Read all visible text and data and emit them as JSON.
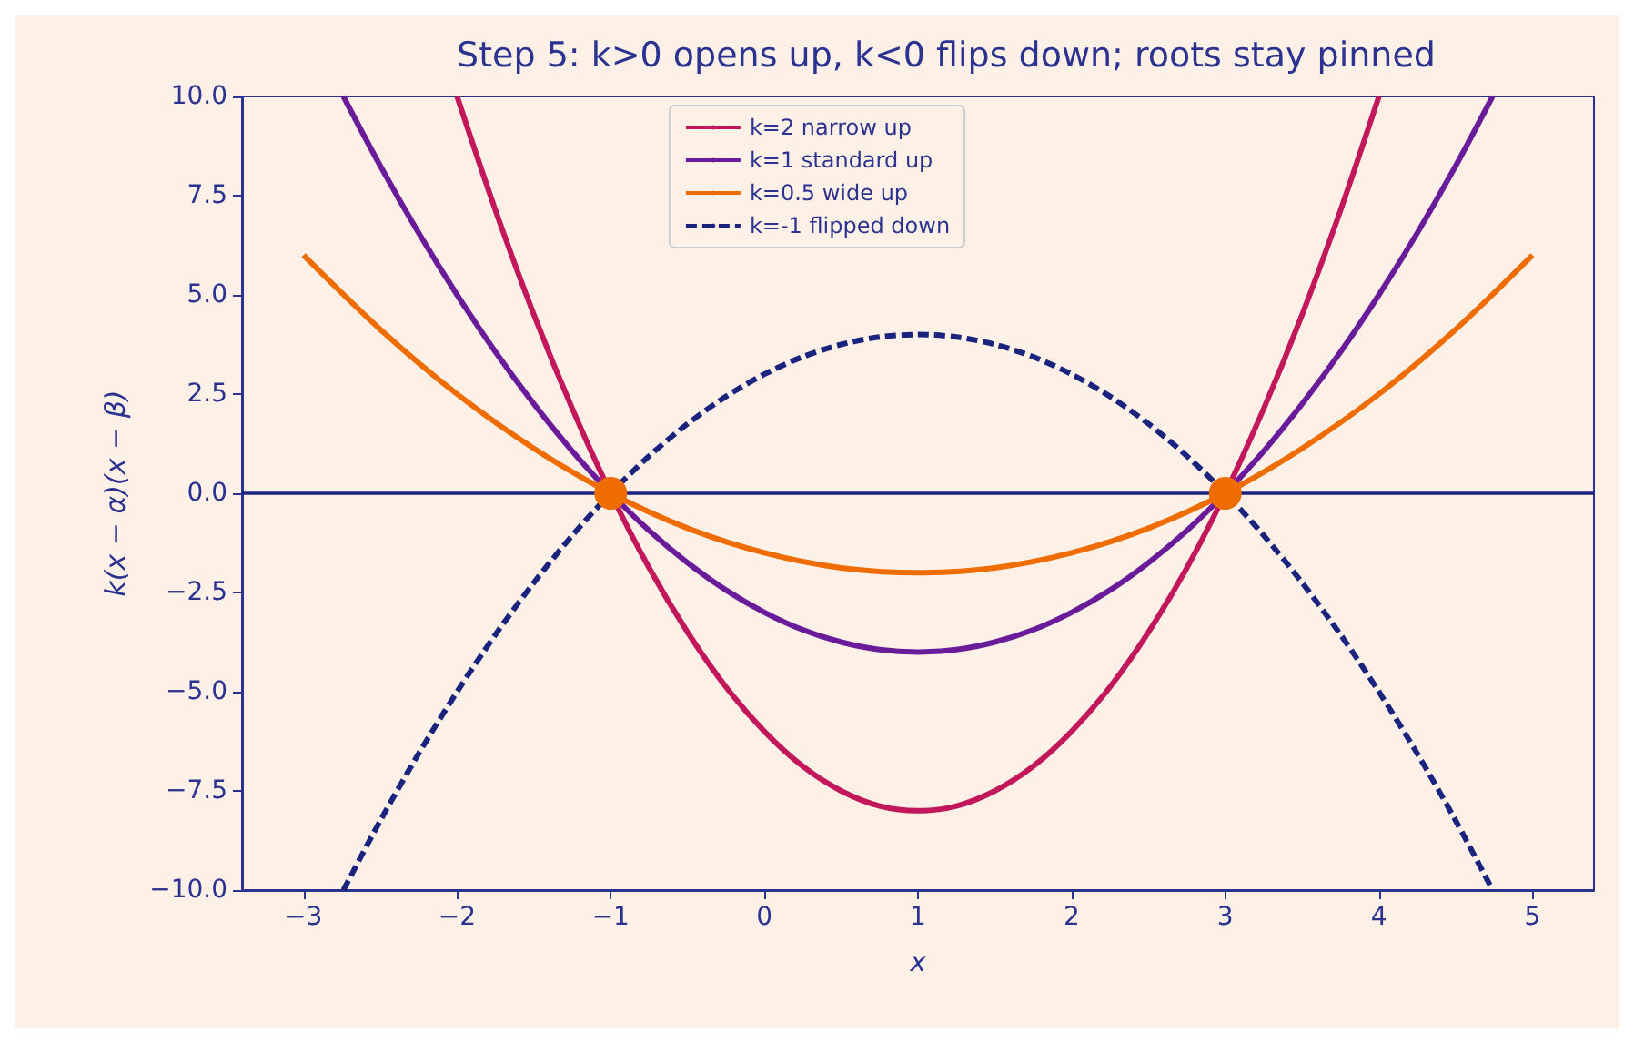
{
  "chart_data": {
    "type": "line",
    "title": "Step 5: k>0 opens up, k<0 flips down; roots stay pinned",
    "xlabel": "x",
    "ylabel": "k(x − α)(x − β)",
    "xlim": [
      -3.4,
      5.4
    ],
    "ylim": [
      -10,
      10
    ],
    "xticks": [
      {
        "value": -3,
        "label": "−3"
      },
      {
        "value": -2,
        "label": "−2"
      },
      {
        "value": -1,
        "label": "−1"
      },
      0,
      1,
      2,
      3,
      4,
      5
    ],
    "yticks": [
      {
        "value": -10,
        "label": "−10.0"
      },
      {
        "value": -7.5,
        "label": "−7.5"
      },
      {
        "value": -5,
        "label": "−5.0"
      },
      {
        "value": -2.5,
        "label": "−2.5"
      },
      {
        "value": 0,
        "label": "0.0"
      },
      {
        "value": 2.5,
        "label": "2.5"
      },
      {
        "value": 5,
        "label": "5.0"
      },
      {
        "value": 7.5,
        "label": "7.5"
      },
      {
        "value": 10,
        "label": "10.0"
      }
    ],
    "grid": false,
    "legend": "top",
    "marker": "none",
    "ref_lines": [
      {
        "axis": "y",
        "value": 0,
        "color": "#1a237e",
        "line_style": "solid"
      }
    ],
    "series": [
      {
        "name": "k=2 narrow up",
        "color": "#c2185b",
        "line_style": "solid",
        "x": [
          -2,
          -1.75,
          -1.5,
          -1.25,
          -1,
          -0.75,
          -0.5,
          -0.25,
          0,
          0.25,
          0.5,
          0.75,
          1,
          1.25,
          1.5,
          1.75,
          2,
          2.25,
          2.5,
          2.75,
          3,
          3.25,
          3.5,
          3.75,
          4
        ],
        "values": [
          10,
          7.13,
          4.5,
          2.13,
          0,
          -1.88,
          -3.5,
          -4.88,
          -6,
          -6.88,
          -7.5,
          -7.88,
          -8,
          -7.88,
          -7.5,
          -6.88,
          -6,
          -4.88,
          -3.5,
          -1.88,
          0,
          2.13,
          4.5,
          7.13,
          10
        ]
      },
      {
        "name": "k=1 standard up",
        "color": "#6a1b9a",
        "line_style": "solid",
        "x": [
          -2.74,
          -2.5,
          -2.25,
          -2,
          -1.75,
          -1.5,
          -1.25,
          -1,
          -0.75,
          -0.5,
          -0.25,
          0,
          0.25,
          0.5,
          0.75,
          1,
          1.25,
          1.5,
          1.75,
          2,
          2.25,
          2.5,
          2.75,
          3,
          3.25,
          3.5,
          3.75,
          4,
          4.25,
          4.5,
          4.74
        ],
        "values": [
          10,
          8.25,
          6.56,
          5,
          3.56,
          2.25,
          1.06,
          0,
          -0.94,
          -1.75,
          -2.44,
          -3,
          -3.44,
          -3.75,
          -3.94,
          -4,
          -3.94,
          -3.75,
          -3.44,
          -3,
          -2.44,
          -1.75,
          -0.94,
          0,
          1.06,
          2.25,
          3.56,
          5,
          6.56,
          8.25,
          10
        ]
      },
      {
        "name": "k=0.5 wide up",
        "color": "#ef6c00",
        "line_style": "solid",
        "x": [
          -3,
          -2.5,
          -2,
          -1.5,
          -1,
          -0.5,
          0,
          0.5,
          1,
          1.5,
          2,
          2.5,
          3,
          3.5,
          4,
          4.5,
          5
        ],
        "values": [
          6,
          4.13,
          2.5,
          1.13,
          0,
          -0.88,
          -1.5,
          -1.88,
          -2,
          -1.88,
          -1.5,
          -0.88,
          0,
          1.13,
          2.5,
          4.13,
          6
        ]
      },
      {
        "name": "k=-1 flipped down",
        "color": "#1a237e",
        "line_style": "dashed",
        "x": [
          -2.74,
          -2.5,
          -2.25,
          -2,
          -1.75,
          -1.5,
          -1.25,
          -1,
          -0.75,
          -0.5,
          -0.25,
          0,
          0.25,
          0.5,
          0.75,
          1,
          1.25,
          1.5,
          1.75,
          2,
          2.25,
          2.5,
          2.75,
          3,
          3.25,
          3.5,
          3.75,
          4,
          4.25,
          4.5,
          4.74
        ],
        "values": [
          -10,
          -8.25,
          -6.56,
          -5,
          -3.56,
          -2.25,
          -1.06,
          0,
          0.94,
          1.75,
          2.44,
          3,
          3.44,
          3.75,
          3.94,
          4,
          3.94,
          3.75,
          3.44,
          3,
          2.44,
          1.75,
          0.94,
          0,
          -1.06,
          -2.25,
          -3.56,
          -5,
          -6.56,
          -8.25,
          -10
        ]
      },
      {
        "type": "scatter",
        "color": "#ef6c00",
        "marker": "circle",
        "x": [
          -1,
          3
        ],
        "values": [
          0,
          0
        ]
      }
    ]
  }
}
